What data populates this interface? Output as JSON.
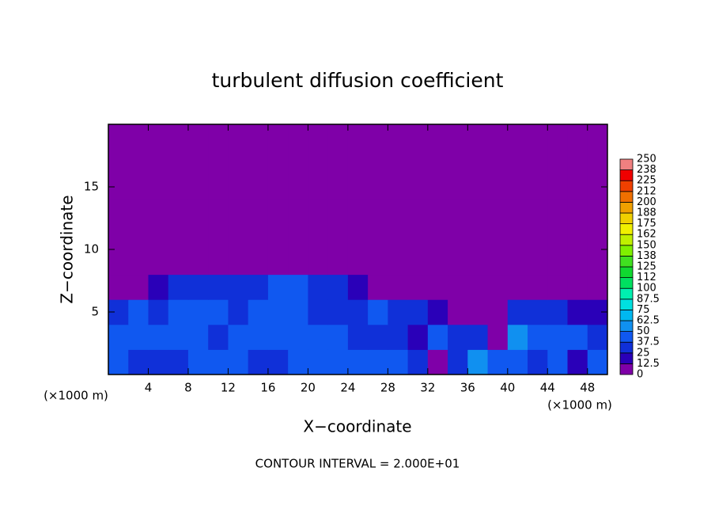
{
  "chart_data": {
    "type": "heatmap",
    "title": "turbulent diffusion coefficient",
    "xlabel": "X−coordinate",
    "ylabel": "Z−coordinate",
    "x_unit_labels": [
      "(×1000 m)",
      "(×1000 m)"
    ],
    "footer": "CONTOUR INTERVAL = 2.000E+01",
    "xlim": [
      0,
      50
    ],
    "ylim": [
      0,
      20
    ],
    "xticks": [
      4,
      8,
      12,
      16,
      20,
      24,
      28,
      32,
      36,
      40,
      44,
      48
    ],
    "yticks": [
      5,
      10,
      15
    ],
    "x": [
      1,
      3,
      5,
      7,
      9,
      11,
      13,
      15,
      17,
      19,
      21,
      23,
      25,
      27,
      29,
      31,
      33,
      35,
      37,
      39,
      41,
      43,
      45,
      47,
      49
    ],
    "y": [
      1,
      3,
      5,
      7,
      9,
      11,
      13,
      15,
      17,
      19
    ],
    "values": [
      [
        40,
        35,
        30,
        35,
        40,
        45,
        40,
        35,
        30,
        40,
        45,
        40,
        40,
        40,
        45,
        30,
        10,
        30,
        50,
        40,
        45,
        35,
        40,
        15,
        40
      ],
      [
        45,
        40,
        40,
        45,
        40,
        35,
        45,
        40,
        45,
        40,
        45,
        40,
        30,
        35,
        35,
        20,
        45,
        35,
        35,
        10,
        55,
        45,
        40,
        40,
        35
      ],
      [
        30,
        40,
        35,
        40,
        45,
        40,
        35,
        45,
        40,
        45,
        30,
        35,
        35,
        40,
        35,
        25,
        20,
        5,
        5,
        5,
        30,
        30,
        25,
        20,
        15
      ],
      [
        5,
        10,
        20,
        25,
        25,
        30,
        30,
        35,
        40,
        40,
        30,
        25,
        20,
        10,
        5,
        5,
        5,
        5,
        5,
        5,
        5,
        5,
        5,
        5,
        5
      ],
      [
        5,
        5,
        5,
        5,
        5,
        5,
        5,
        5,
        5,
        5,
        5,
        5,
        5,
        5,
        5,
        5,
        5,
        5,
        5,
        5,
        5,
        5,
        5,
        5,
        5
      ],
      [
        0,
        0,
        0,
        0,
        0,
        0,
        0,
        0,
        0,
        0,
        0,
        0,
        0,
        0,
        0,
        0,
        0,
        0,
        0,
        0,
        0,
        0,
        0,
        0,
        0
      ],
      [
        0,
        0,
        0,
        0,
        0,
        0,
        0,
        0,
        0,
        0,
        0,
        0,
        0,
        0,
        0,
        0,
        0,
        0,
        0,
        0,
        0,
        0,
        0,
        0,
        0
      ],
      [
        0,
        0,
        0,
        0,
        0,
        0,
        0,
        0,
        0,
        0,
        0,
        0,
        0,
        0,
        0,
        0,
        0,
        0,
        0,
        0,
        0,
        0,
        0,
        0,
        0
      ],
      [
        0,
        0,
        0,
        0,
        0,
        0,
        0,
        0,
        0,
        0,
        0,
        0,
        0,
        0,
        0,
        0,
        0,
        0,
        0,
        0,
        0,
        0,
        0,
        0,
        0
      ],
      [
        0,
        0,
        0,
        0,
        0,
        0,
        0,
        0,
        0,
        0,
        0,
        0,
        0,
        0,
        0,
        0,
        0,
        0,
        0,
        0,
        0,
        0,
        0,
        0,
        0
      ]
    ],
    "colorbar": {
      "levels": [
        0,
        12.5,
        25,
        37.5,
        50,
        62.5,
        75,
        87.5,
        100,
        {
          "value": 112.5,
          "label": "112"
        },
        125,
        {
          "value": 137.5,
          "label": "138"
        },
        150,
        {
          "value": 162.5,
          "label": "162"
        },
        175,
        {
          "value": 187.5,
          "label": "188"
        },
        200,
        {
          "value": 212.5,
          "label": "212"
        },
        225,
        {
          "value": 237.5,
          "label": "238"
        },
        250
      ],
      "colors": [
        "#7f00a8",
        "#2a00b8",
        "#1030d8",
        "#1058f0",
        "#1090f0",
        "#00b8f0",
        "#00e0e0",
        "#00f0b0",
        "#00e060",
        "#10d830",
        "#40e020",
        "#80f000",
        "#c0f000",
        "#f0f000",
        "#f0d000",
        "#f0a000",
        "#f07000",
        "#f04000",
        "#f00000",
        "#f08080"
      ]
    }
  }
}
